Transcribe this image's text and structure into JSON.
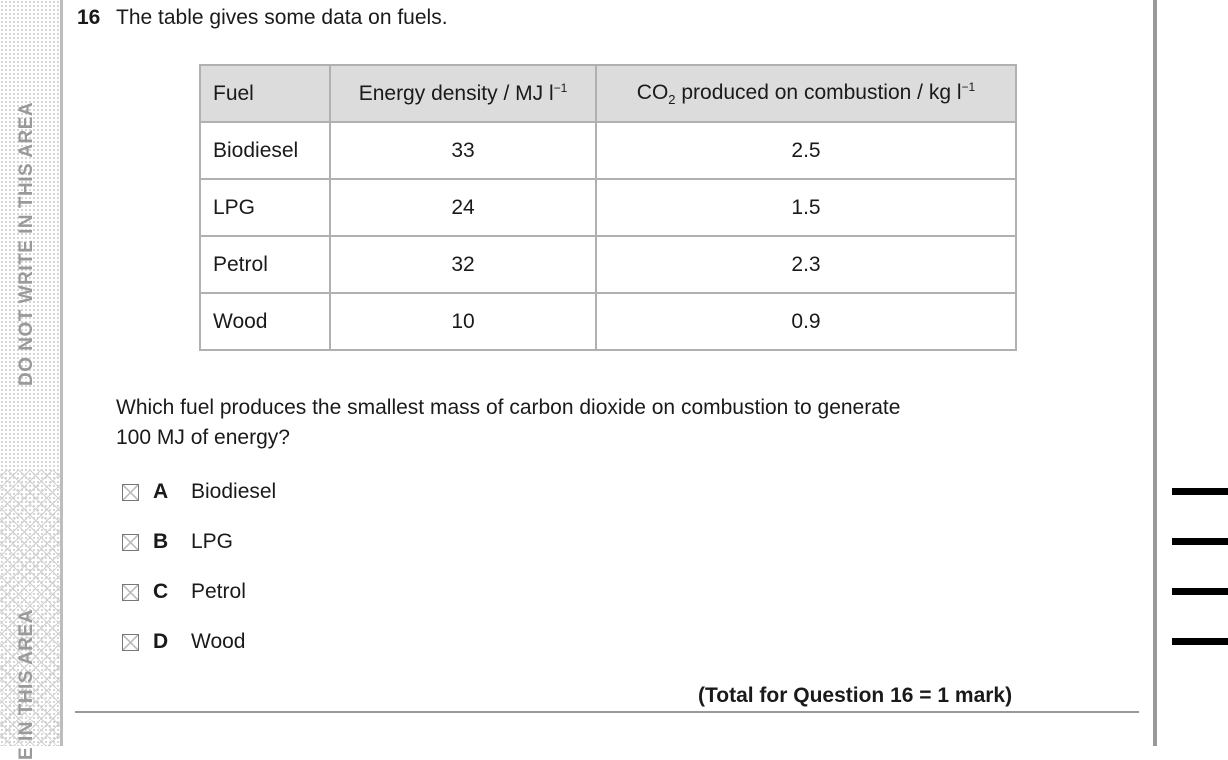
{
  "margin": {
    "left_warning_top": "DO NOT WRITE IN THIS AREA",
    "left_warning_bottom": "E IN THIS AREA"
  },
  "question": {
    "number": "16",
    "stem": "The table gives some data on fuels.",
    "prompt_line1": "Which fuel produces the smallest mass of carbon dioxide on combustion to generate",
    "prompt_line2": "100 MJ of energy?",
    "total": "(Total for Question 16 = 1 mark)"
  },
  "table": {
    "headers": {
      "fuel": "Fuel",
      "energy_prefix": "Energy density / MJ l",
      "energy_sup": "−1",
      "co2_prefix": "CO",
      "co2_sub": "2",
      "co2_rest": " produced on combustion / kg l",
      "co2_sup": "−1"
    },
    "rows": [
      {
        "fuel": "Biodiesel",
        "energy": "33",
        "co2": "2.5"
      },
      {
        "fuel": "LPG",
        "energy": "24",
        "co2": "1.5"
      },
      {
        "fuel": "Petrol",
        "energy": "32",
        "co2": "2.3"
      },
      {
        "fuel": "Wood",
        "energy": "10",
        "co2": "0.9"
      }
    ]
  },
  "options": [
    {
      "letter": "A",
      "text": "Biodiesel"
    },
    {
      "letter": "B",
      "text": "LPG"
    },
    {
      "letter": "C",
      "text": "Petrol"
    },
    {
      "letter": "D",
      "text": "Wood"
    }
  ]
}
